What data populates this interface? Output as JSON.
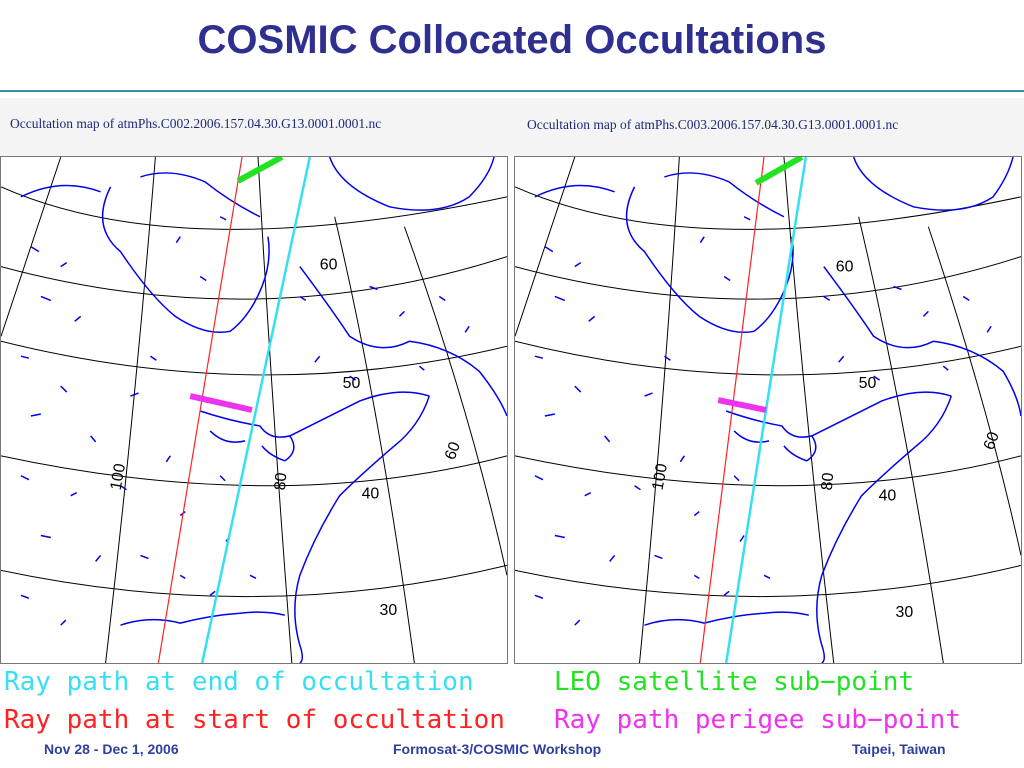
{
  "slide": {
    "title": "COSMIC Collocated Occultations"
  },
  "maps": [
    {
      "caption": "Occultation map of atmPhs.C002.2006.157.04.30.G13.0001.0001.nc",
      "lat_labels": [
        "60",
        "50",
        "40",
        "30"
      ],
      "lon_labels": [
        "100",
        "80",
        "60"
      ],
      "ray_start": [
        [
          242,
          0
        ],
        [
          158,
          508
        ]
      ],
      "ray_end": [
        [
          310,
          0
        ],
        [
          202,
          508
        ]
      ],
      "leo_subpoint": [
        [
          238,
          24
        ],
        [
          282,
          0
        ]
      ],
      "perigee_subpoint": [
        [
          190,
          240
        ],
        [
          252,
          254
        ]
      ]
    },
    {
      "caption": "Occultation map of atmPhs.C003.2006.157.04.30.G13.0001.0001.nc",
      "lat_labels": [
        "60",
        "50",
        "40",
        "30"
      ],
      "lon_labels": [
        "100",
        "80",
        "60"
      ],
      "ray_start": [
        [
          250,
          0
        ],
        [
          186,
          508
        ]
      ],
      "ray_end": [
        [
          292,
          0
        ],
        [
          212,
          508
        ]
      ],
      "leo_subpoint": [
        [
          242,
          26
        ],
        [
          288,
          0
        ]
      ],
      "perigee_subpoint": [
        [
          204,
          244
        ],
        [
          252,
          254
        ]
      ]
    }
  ],
  "legend": {
    "ray_end": "Ray path at end of occultation",
    "leo": "LEO satellite sub−point",
    "ray_start": "Ray path at start of occultation",
    "perigee": "Ray path perigee sub−point"
  },
  "footer": {
    "date": "Nov 28 - Dec 1, 2006",
    "event": "Formosat-3/COSMIC Workshop",
    "location": "Taipei, Taiwan"
  },
  "colors": {
    "title": "#2f2f8f",
    "coastline": "#0000ee",
    "ray_end": "#36e0f0",
    "ray_start": "#ff2222",
    "leo": "#22e322",
    "perigee": "#ee33ee"
  }
}
